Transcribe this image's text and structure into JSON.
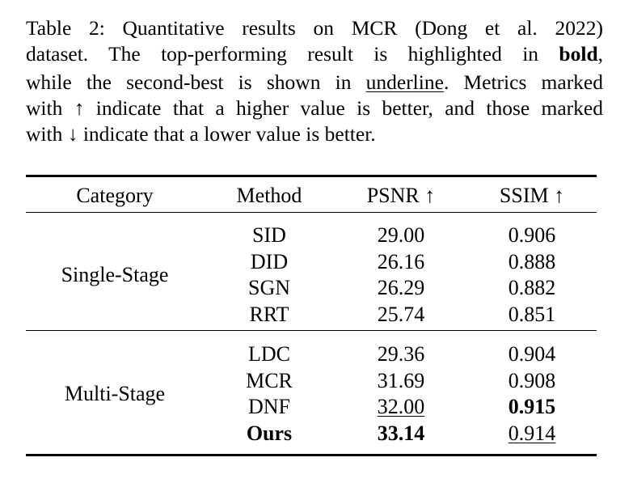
{
  "caption": [
    [
      "Table 2: Quantitative results on MCR (Dong et al. 2022)"
    ],
    [
      "dataset. The top-performing result is highlighted in ",
      "bold",
      ","
    ],
    [
      "while the second-best is shown in ",
      "underline",
      ". Metrics marked"
    ],
    [
      "with ↑ indicate that a higher value is better, and those marked"
    ],
    [
      "with ↓ indicate that a lower value is better."
    ]
  ],
  "table": {
    "header": [
      "Category",
      "Method",
      "PSNR ↑",
      "SSIM ↑"
    ],
    "groups": [
      {
        "category": "Single-Stage",
        "rows": [
          [
            "SID",
            "29.00",
            "0.906"
          ],
          [
            "DID",
            "26.16",
            "0.888"
          ],
          [
            "SGN",
            "26.29",
            "0.882"
          ],
          [
            "RRT",
            "25.74",
            "0.851"
          ]
        ]
      },
      {
        "category": "Multi-Stage",
        "rows": [
          [
            "LDC",
            "29.36",
            "0.904"
          ],
          [
            "MCR",
            "31.69",
            "0.908"
          ],
          [
            "DNF",
            "32.00",
            "0.915"
          ],
          [
            "Ours",
            "33.14",
            "0.914"
          ]
        ]
      }
    ]
  }
}
